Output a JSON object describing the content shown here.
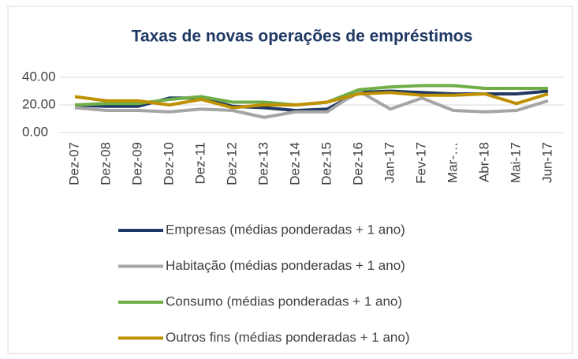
{
  "chart_data": {
    "type": "line",
    "title": "Taxas de novas operações de empréstimos",
    "categories": [
      "Dez-07",
      "Dez-08",
      "Dez-09",
      "Dez-10",
      "Dez-11",
      "Dez-12",
      "Dez-13",
      "Dez-14",
      "Dez-15",
      "Dez-16",
      "Jan-17",
      "Fev-17",
      "Mar-…",
      "Abr-18",
      "Mai-17",
      "Jun-17"
    ],
    "series": [
      {
        "name": "Empresas (médias ponderadas + 1 ano)",
        "color": "#1f3864",
        "values": [
          20,
          19,
          19,
          25,
          25,
          19,
          18,
          16,
          17,
          29,
          30,
          29,
          28,
          28,
          28,
          30
        ]
      },
      {
        "name": "Habitação (médias ponderadas + 1 ano)",
        "color": "#a5a5a5",
        "values": [
          18,
          16,
          16,
          15,
          17,
          16,
          11,
          15,
          15,
          30,
          17,
          25,
          16,
          15,
          16,
          23
        ]
      },
      {
        "name": "Consumo (médias ponderadas + 1 ano)",
        "color": "#70ad47",
        "values": [
          20,
          21,
          21,
          24,
          26,
          22,
          22,
          20,
          22,
          31,
          33,
          34,
          34,
          32,
          32,
          32
        ]
      },
      {
        "name": "Outros fins (médias ponderadas + 1 ano)",
        "color": "#bf9000",
        "values": [
          26,
          23,
          23,
          20,
          24,
          18,
          20,
          20,
          22,
          28,
          29,
          27,
          27,
          28,
          21,
          28
        ]
      }
    ],
    "ylim": [
      0,
      40
    ],
    "yticks": [
      {
        "value": 0,
        "label": "0.00"
      },
      {
        "value": 20,
        "label": "20.00"
      },
      {
        "value": 40,
        "label": "40.00"
      }
    ],
    "grid": true,
    "legend": "bottom"
  }
}
